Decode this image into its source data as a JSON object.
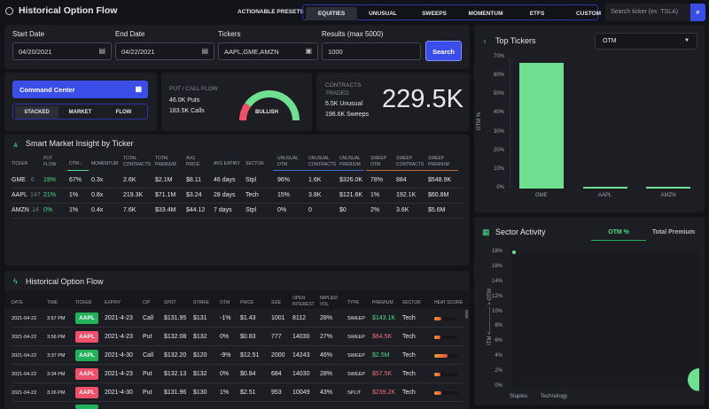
{
  "header": {
    "title": "Historical Option Flow",
    "presets_label": "ACTIONABLE PRESETS",
    "presets": [
      "EQUITIES",
      "UNUSUAL",
      "SWEEPS",
      "MOMENTUM",
      "ETFS",
      "CUSTOM"
    ],
    "active_preset": "EQUITIES",
    "search_placeholder": "Search ticker (ex. TSLA)"
  },
  "filters": {
    "start_label": "Start Date",
    "start_value": "04/20/2021",
    "end_label": "End Date",
    "end_value": "04/22/2021",
    "tickers_label": "Tickers",
    "tickers_value": "AAPL,GME,AMZN",
    "results_label": "Results (max 5000)",
    "results_value": "1000",
    "search_button": "Search"
  },
  "command": {
    "title": "Command Center",
    "tabs": [
      "STACKED",
      "MARKET",
      "FLOW"
    ],
    "active_tab": "STACKED"
  },
  "putcall": {
    "title": "PUT / CALL FLOW",
    "puts": "46.0K Puts",
    "calls": "183.5K Calls",
    "gauge_label": "BULLISH",
    "bullish_fraction": 0.8
  },
  "contracts": {
    "title_line1": "CONTRACTS",
    "title_line2": "TRADED",
    "unusual": "5.5K Unusual",
    "sweeps": "196.6K Sweeps",
    "total": "229.5K"
  },
  "insight": {
    "title": "Smart Market Insight by Ticker",
    "columns": [
      [
        "TICKER",
        ""
      ],
      [
        "PUT",
        "FLOW"
      ],
      [
        "OTM ↓",
        ""
      ],
      [
        "MOMENTUM",
        ""
      ],
      [
        "TOTAL",
        "CONTRACTS"
      ],
      [
        "TOTAL",
        "PREMIUM"
      ],
      [
        "AVG",
        "PRICE"
      ],
      [
        "AVG EXPIRY",
        ""
      ],
      [
        "SECTOR",
        ""
      ],
      [
        "UNUSUAL",
        "OTM"
      ],
      [
        "UNUSUAL",
        "CONTRACTS"
      ],
      [
        "UNUSUAL",
        "PREMIUM"
      ],
      [
        "SWEEP",
        "OTM"
      ],
      [
        "SWEEP",
        "CONTRACTS"
      ],
      [
        "SWEEP",
        "PREMIUM"
      ]
    ],
    "rows": [
      [
        "GME",
        "6",
        "19%",
        "67%",
        "0.3x",
        "2.6K",
        "$2.1M",
        "$8.11",
        "46 days",
        "Stpl",
        "96%",
        "1.6K",
        "$326.0K",
        "78%",
        "884",
        "$548.9K"
      ],
      [
        "AAPL",
        "147",
        "21%",
        "1%",
        "0.8x",
        "219.3K",
        "$71.1M",
        "$3.24",
        "28 days",
        "Tech",
        "15%",
        "3.8K",
        "$121.6K",
        "1%",
        "192.1K",
        "$60.8M"
      ],
      [
        "AMZN",
        "14",
        "0%",
        "1%",
        "0.4x",
        "7.6K",
        "$33.4M",
        "$44.12",
        "7 days",
        "Stpl",
        "0%",
        "0",
        "$0",
        "2%",
        "3.6K",
        "$5.6M"
      ]
    ]
  },
  "flow": {
    "title": "Historical Option Flow",
    "columns": [
      [
        "DATE",
        ""
      ],
      [
        "TIME",
        ""
      ],
      [
        "TICKER",
        ""
      ],
      [
        "EXPIRY",
        ""
      ],
      [
        "C/P",
        ""
      ],
      [
        "SPOT",
        ""
      ],
      [
        "STRIKE",
        ""
      ],
      [
        "OTM",
        ""
      ],
      [
        "PRICE",
        ""
      ],
      [
        "SIZE",
        ""
      ],
      [
        "OPEN",
        "INTEREST"
      ],
      [
        "IMPLIED",
        "VOL"
      ],
      [
        "TYPE",
        ""
      ],
      [
        "PREMIUM",
        ""
      ],
      [
        "SECTOR",
        ""
      ],
      [
        "HEAT SCORE",
        ""
      ]
    ],
    "rows": [
      [
        "2021-04-22",
        "3:57 PM",
        "AAPL",
        "2021-4-23",
        "Call",
        "$131.95",
        "$131",
        "-1%",
        "$1.43",
        "1001",
        "8112",
        "28%",
        "SWEEP",
        "$143.1K",
        "Tech",
        0.3
      ],
      [
        "2021-04-22",
        "3:56 PM",
        "AAPL",
        "2021-4-23",
        "Put",
        "$132.08",
        "$132",
        "0%",
        "$0.83",
        "777",
        "14030",
        "27%",
        "SWEEP",
        "$64.5K",
        "Tech",
        0.25
      ],
      [
        "2021-04-22",
        "3:37 PM",
        "AAPL",
        "2021-4-30",
        "Call",
        "$132.20",
        "$120",
        "-9%",
        "$12.51",
        "2000",
        "14243",
        "46%",
        "SWEEP",
        "$2.5M",
        "Tech",
        0.55
      ],
      [
        "2021-04-22",
        "3:34 PM",
        "AAPL",
        "2021-4-23",
        "Put",
        "$132.13",
        "$132",
        "0%",
        "$0.84",
        "684",
        "14030",
        "28%",
        "SWEEP",
        "$57.5K",
        "Tech",
        0.25
      ],
      [
        "2021-04-22",
        "3:26 PM",
        "AAPL",
        "2021-4-30",
        "Put",
        "$131.96",
        "$130",
        "1%",
        "$2.51",
        "953",
        "10049",
        "43%",
        "SPLIT",
        "$239.2K",
        "Tech",
        0.28
      ]
    ]
  },
  "top_tickers": {
    "title": "Top Tickers",
    "select_value": "OTM",
    "chart_data": {
      "type": "bar",
      "categories": [
        "GME",
        "AAPL",
        "AMZN"
      ],
      "values": [
        67,
        1,
        1
      ],
      "ylabel": "OTM %",
      "ylim": [
        0,
        70
      ],
      "yticks": [
        "0%",
        "10%",
        "20%",
        "30%",
        "40%",
        "50%",
        "60%",
        "70%"
      ],
      "color": "#6ee08f"
    }
  },
  "sector": {
    "title": "Sector Activity",
    "tabs": [
      "OTM %",
      "Total Premium"
    ],
    "active_tab": "OTM %",
    "chart_data": {
      "type": "scatter",
      "categories": [
        "Staples",
        "Technology"
      ],
      "ylabel": "ITM <-------------- > OTM",
      "ylim": [
        0,
        18
      ],
      "yticks": [
        "0%",
        "2%",
        "4%",
        "6%",
        "8%",
        "10%",
        "12%",
        "14%",
        "16%",
        "18%"
      ],
      "points": [
        {
          "x": "Staples",
          "y": 18
        },
        {
          "x": "Technology",
          "y": 1
        }
      ],
      "color": "#6ee08f"
    }
  },
  "colors": {
    "accent": "#3a4de6",
    "green": "#4ddd86",
    "red": "#f0506a",
    "bg": "#111318",
    "panel": "#1c1e24"
  }
}
